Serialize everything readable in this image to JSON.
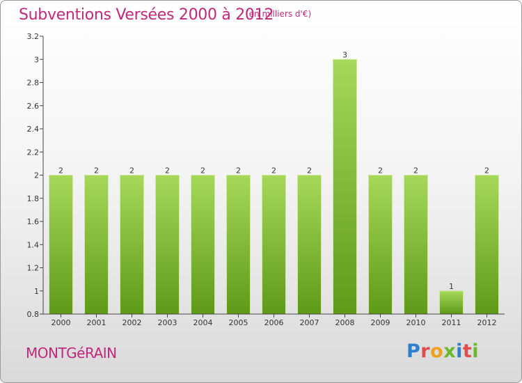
{
  "header": {
    "title": "Subventions Versées 2000 à 2012",
    "subtitle": "(en milliers d'€)"
  },
  "footer": {
    "commune": "MONTGéRAIN",
    "logo_letters": [
      "P",
      "r",
      "o",
      "x",
      "i",
      "t",
      "i"
    ],
    "logo_colors": [
      "#2f7fd1",
      "#e24b4b",
      "#f0a020",
      "#6ab82e",
      "#2f7fd1",
      "#e24b4b",
      "#6ab82e"
    ]
  },
  "chart_data": {
    "type": "bar",
    "categories": [
      "2000",
      "2001",
      "2002",
      "2003",
      "2004",
      "2005",
      "2006",
      "2007",
      "2008",
      "2009",
      "2010",
      "2011",
      "2012"
    ],
    "values": [
      2,
      2,
      2,
      2,
      2,
      2,
      2,
      2,
      3,
      2,
      2,
      1,
      2
    ],
    "data_labels": [
      "2",
      "2",
      "2",
      "2",
      "2",
      "2",
      "2",
      "2",
      "3",
      "2",
      "2",
      "1",
      "2"
    ],
    "ylim": [
      0.8,
      3.2
    ],
    "yticks": [
      0.8,
      1,
      1.2,
      1.4,
      1.6,
      1.8,
      2,
      2.2,
      2.4,
      2.6,
      2.8,
      3,
      3.2
    ],
    "ytick_labels": [
      "0.8",
      "1",
      "1.2",
      "1.4",
      "1.6",
      "1.8",
      "2",
      "2.2",
      "2.4",
      "2.6",
      "2.8",
      "3",
      "3.2"
    ],
    "grid": false,
    "legend": "none",
    "bar_color_light": "#a6d85a",
    "bar_color_dark": "#5f9a17",
    "axis_color": "#444444"
  }
}
